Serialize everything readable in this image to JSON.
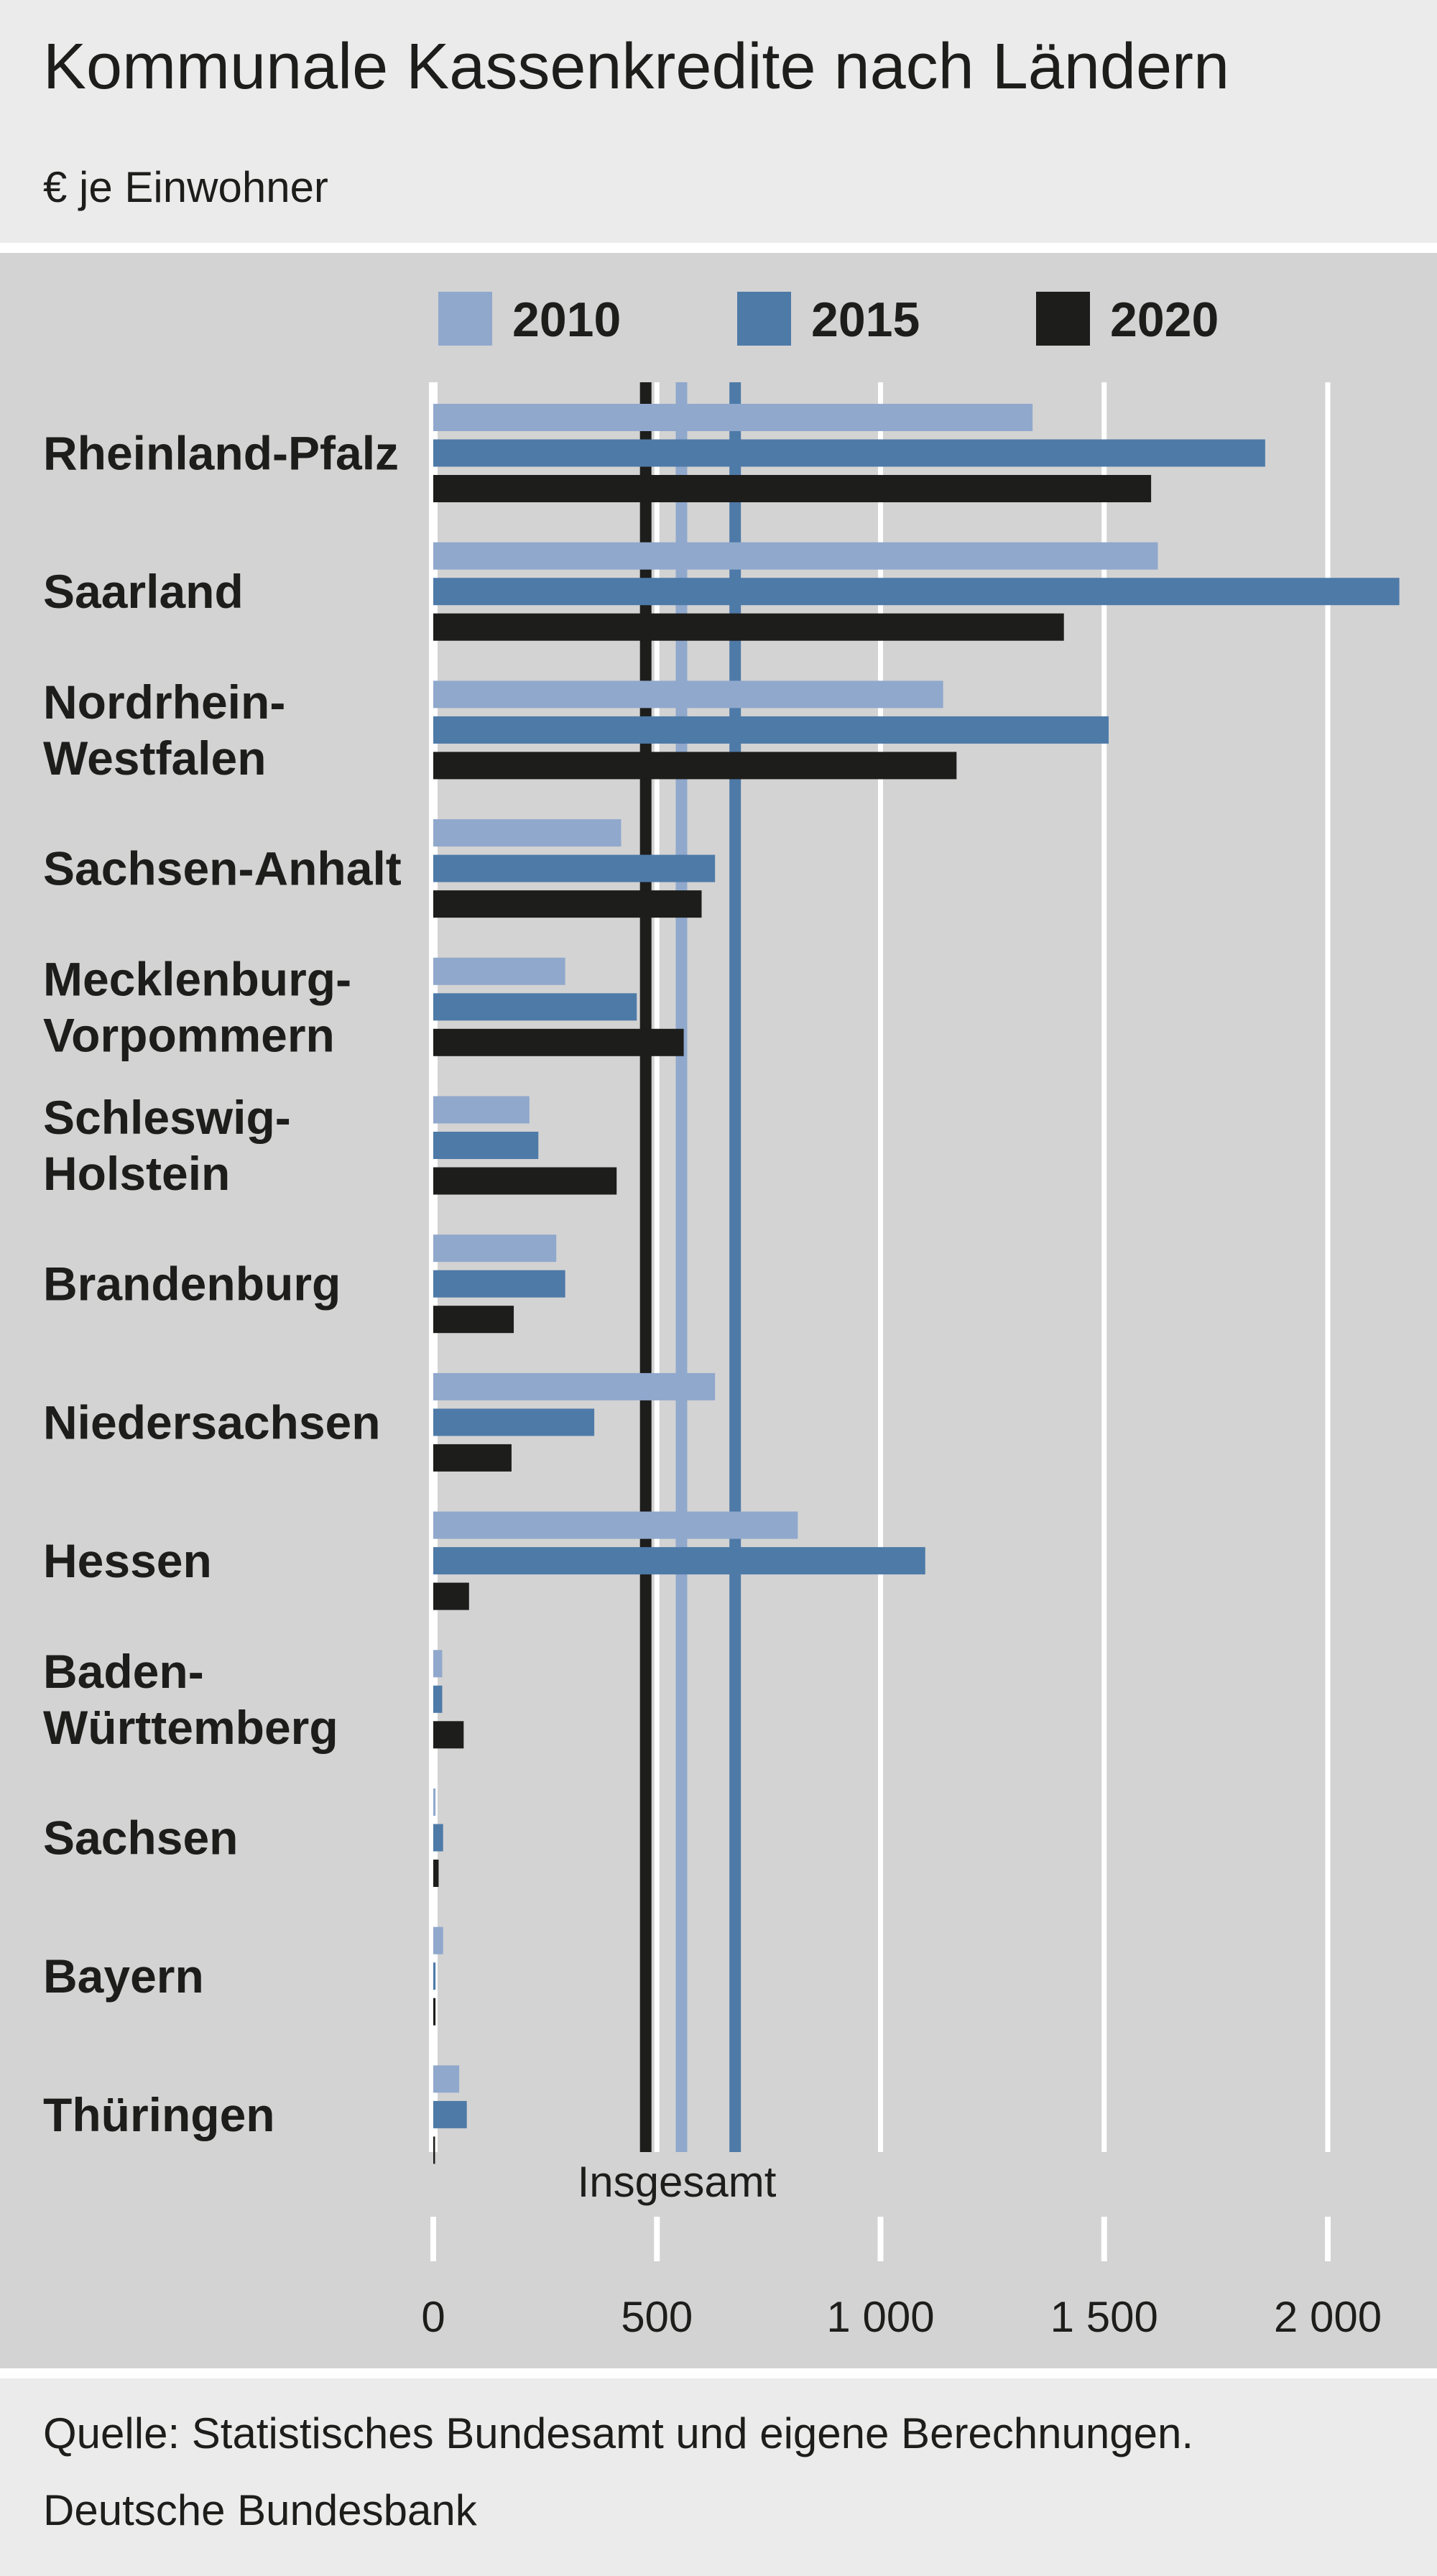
{
  "header": {
    "title": "Kommunale Kassenkredite nach Ländern",
    "subtitle": "€ je Einwohner"
  },
  "footer": {
    "source": "Quelle: Statistisches Bundesamt und eigene Berechnungen.",
    "brand": "Deutsche Bundesbank"
  },
  "chart_data": {
    "type": "bar",
    "orientation": "horizontal",
    "title": "Kommunale Kassenkredite nach Ländern",
    "subtitle": "€ je Einwohner",
    "categories": [
      [
        "Rheinland-Pfalz"
      ],
      [
        "Saarland"
      ],
      [
        "Nordrhein-",
        "Westfalen"
      ],
      [
        "Sachsen-Anhalt"
      ],
      [
        "Mecklenburg-",
        "Vorpommern"
      ],
      [
        "Schleswig-",
        "Holstein"
      ],
      [
        "Brandenburg"
      ],
      [
        "Niedersachsen"
      ],
      [
        "Hessen"
      ],
      [
        "Baden-",
        "Württemberg"
      ],
      [
        "Sachsen"
      ],
      [
        "Bayern"
      ],
      [
        "Thüringen"
      ]
    ],
    "series": [
      {
        "name": "2010",
        "color": "#90a8cc",
        "values": [
          1340,
          1620,
          1140,
          420,
          295,
          215,
          275,
          630,
          815,
          20,
          5,
          22,
          58
        ]
      },
      {
        "name": "2015",
        "color": "#4e7aa8",
        "values": [
          1860,
          2160,
          1510,
          630,
          455,
          235,
          295,
          360,
          1100,
          20,
          22,
          5,
          75
        ]
      },
      {
        "name": "2020",
        "color": "#1d1d1b",
        "values": [
          1605,
          1410,
          1170,
          600,
          560,
          410,
          180,
          175,
          80,
          68,
          12,
          5,
          4
        ]
      }
    ],
    "reference_lines": [
      {
        "series": "2020",
        "value": 475,
        "color": "#1d1d1b"
      },
      {
        "series": "2010",
        "value": 555,
        "color": "#90a8cc"
      },
      {
        "series": "2015",
        "value": 675,
        "color": "#4e7aa8"
      }
    ],
    "reference_label": "Insgesamt",
    "x_ticks": [
      {
        "value": 0,
        "label": "0"
      },
      {
        "value": 500,
        "label": "500"
      },
      {
        "value": 1000,
        "label": "1 000"
      },
      {
        "value": 1500,
        "label": "1 500"
      },
      {
        "value": 2000,
        "label": "2 000"
      }
    ],
    "xlim": [
      0,
      2000
    ],
    "grid": true,
    "legend_position": "top"
  }
}
